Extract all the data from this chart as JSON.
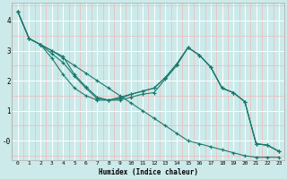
{
  "xlabel": "Humidex (Indice chaleur)",
  "bg_color": "#cceaea",
  "grid_color_major": "#ffffff",
  "grid_color_minor": "#f0b8b8",
  "line_color": "#1a7a6e",
  "lines": [
    {
      "x": [
        0,
        1,
        2,
        3,
        4,
        5,
        6,
        7,
        8,
        9,
        10,
        11,
        12,
        13,
        14,
        15,
        16,
        17,
        18,
        19,
        20,
        21,
        22,
        23
      ],
      "y": [
        4.3,
        3.4,
        3.2,
        3.0,
        2.75,
        2.5,
        2.25,
        2.0,
        1.75,
        1.5,
        1.25,
        1.0,
        0.75,
        0.5,
        0.25,
        0.0,
        -0.1,
        -0.2,
        -0.3,
        -0.4,
        -0.5,
        -0.55,
        -0.55,
        -0.55
      ]
    },
    {
      "x": [
        0,
        1,
        2,
        3,
        4,
        5,
        6,
        7,
        8,
        9,
        10,
        11,
        12,
        13,
        14,
        15,
        16,
        17,
        18,
        19,
        20,
        21,
        22,
        23
      ],
      "y": [
        4.3,
        3.4,
        3.2,
        3.0,
        2.8,
        2.2,
        1.8,
        1.45,
        1.35,
        1.35,
        1.45,
        1.55,
        1.6,
        2.05,
        2.5,
        3.1,
        2.85,
        2.45,
        1.75,
        1.6,
        1.3,
        -0.1,
        -0.15,
        -0.35
      ]
    },
    {
      "x": [
        0,
        1,
        2,
        3,
        4,
        5,
        6,
        7,
        8,
        9,
        10,
        11,
        12,
        13,
        14,
        15,
        16,
        17,
        18,
        19,
        20,
        21,
        22,
        23
      ],
      "y": [
        4.3,
        3.4,
        3.2,
        2.9,
        2.6,
        2.15,
        1.75,
        1.4,
        1.35,
        1.4,
        1.55,
        1.65,
        1.75,
        2.1,
        2.55,
        3.1,
        2.85,
        2.45,
        1.75,
        1.6,
        1.3,
        -0.1,
        -0.15,
        -0.35
      ]
    },
    {
      "x": [
        0,
        1,
        2,
        3,
        4,
        5,
        6,
        7,
        8,
        9,
        10,
        11,
        12,
        13,
        14,
        15,
        16,
        17,
        18,
        19,
        20,
        21,
        22,
        23
      ],
      "y": [
        4.3,
        3.4,
        3.2,
        2.75,
        2.2,
        1.75,
        1.5,
        1.35,
        1.35,
        1.45,
        1.55,
        1.65,
        1.75,
        2.1,
        2.55,
        3.1,
        2.85,
        2.45,
        1.75,
        1.6,
        1.3,
        -0.1,
        -0.15,
        -0.35
      ]
    }
  ],
  "xlim": [
    -0.5,
    23.5
  ],
  "ylim": [
    -0.65,
    4.6
  ],
  "xticks": [
    0,
    1,
    2,
    3,
    4,
    5,
    6,
    7,
    8,
    9,
    10,
    11,
    12,
    13,
    14,
    15,
    16,
    17,
    18,
    19,
    20,
    21,
    22,
    23
  ],
  "yticks": [
    0,
    1,
    2,
    3,
    4
  ],
  "ytick_labels": [
    "-0",
    "1",
    "2",
    "3",
    "4"
  ]
}
